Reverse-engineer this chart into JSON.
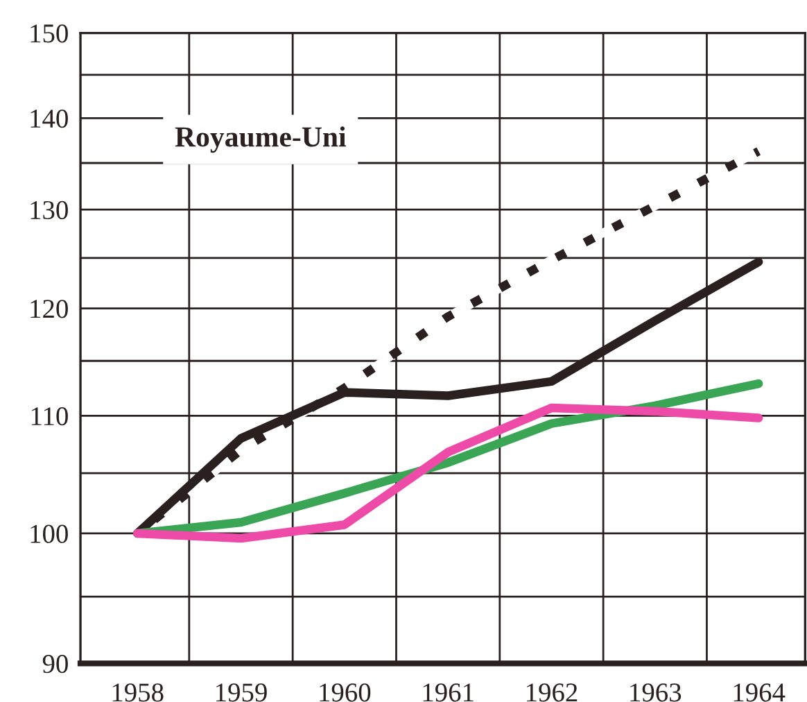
{
  "chart_data": {
    "type": "line",
    "title": "Royaume-Uni",
    "x": [
      1958,
      1959,
      1960,
      1961,
      1962,
      1963,
      1964
    ],
    "series": [
      {
        "color": "#2a2020",
        "line_style": "dashed",
        "values": [
          100,
          107.0,
          112.5,
          119.2,
          124.8,
          130.4,
          136.3
        ]
      },
      {
        "color": "#2a2020",
        "values": [
          100,
          108.0,
          112.1,
          111.8,
          113.1,
          118.8,
          124.6
        ]
      },
      {
        "color": "#3aa655",
        "values": [
          100,
          100.9,
          103.3,
          105.9,
          109.3,
          110.9,
          112.9
        ]
      },
      {
        "color": "#ee4aa8",
        "values": [
          100,
          99.6,
          100.7,
          106.8,
          110.7,
          110.4,
          109.8
        ]
      }
    ],
    "log": "y",
    "xlim": [
      1957.45,
      1964.45
    ],
    "xticks": [
      1958,
      {
        "value": 1958.5,
        "label": null
      },
      1959,
      {
        "value": 1959.5,
        "label": null
      },
      1960,
      {
        "value": 1960.5,
        "label": null
      },
      1961,
      {
        "value": 1961.5,
        "label": null
      },
      1962,
      {
        "value": 1962.5,
        "label": null
      },
      1963,
      {
        "value": 1963.5,
        "label": null
      },
      1964
    ],
    "ylim": [
      90,
      150
    ],
    "yticks": [
      90,
      {
        "value": 95,
        "label": null
      },
      100,
      {
        "value": 105,
        "label": null
      },
      110,
      {
        "value": 115,
        "label": null
      },
      120,
      {
        "value": 125,
        "label": null
      },
      130,
      {
        "value": 135,
        "label": null
      },
      140,
      {
        "value": 145,
        "label": null
      },
      150
    ],
    "grid": true,
    "marker": "none"
  }
}
